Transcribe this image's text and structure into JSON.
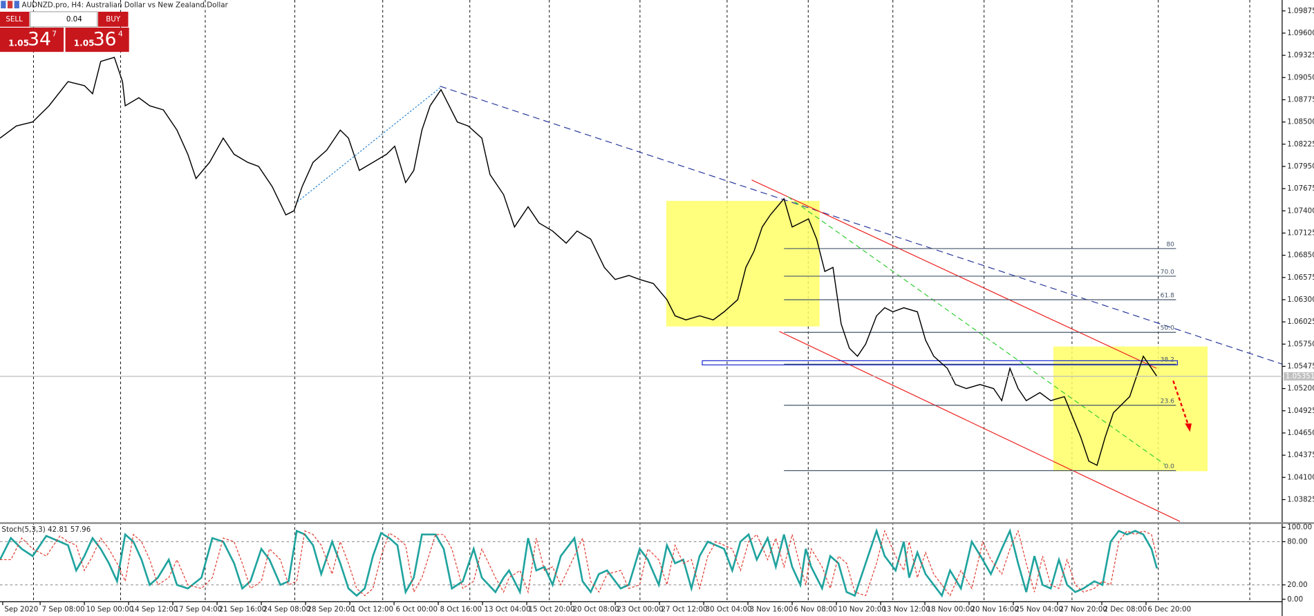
{
  "header": {
    "title": "AUDNZD.pro, H4:  Australian Dollar vs New Zealand Dollar"
  },
  "trade_panel": {
    "sell": "SELL",
    "buy": "BUY",
    "volume": "0.04",
    "sell_price": {
      "big": "1.05",
      "main": "34",
      "small": "7"
    },
    "buy_price": {
      "big": "1.05",
      "main": "36",
      "small": "4"
    }
  },
  "chart_data": [
    {
      "type": "line",
      "name": "AUDNZD.pro",
      "color": "#000000",
      "xlim": [
        0,
        471
      ],
      "xticks": [
        {
          "value": 1,
          "label": "Sep 2020"
        },
        {
          "value": 14.75,
          "label": "7 Sep 08:00"
        },
        {
          "value": 31,
          "label": "10 Sep 00:00"
        },
        {
          "value": 47.25,
          "label": "14 Sep 12:00"
        },
        {
          "value": 63.5,
          "label": "17 Sep 04:00"
        },
        {
          "value": 79.75,
          "label": "21 Sep 16:00"
        },
        {
          "value": 96,
          "label": "24 Sep 08:00"
        },
        {
          "value": 112.25,
          "label": "28 Sep 20:00"
        },
        {
          "value": 128.5,
          "label": "1 Oct 12:00"
        },
        {
          "value": 144.75,
          "label": "6 Oct 00:00"
        },
        {
          "value": 161,
          "label": "8 Oct 16:00"
        },
        {
          "value": 177.25,
          "label": "13 Oct 04:00"
        },
        {
          "value": 193.5,
          "label": "15 Oct 20:00"
        },
        {
          "value": 209.75,
          "label": "20 Oct 08:00"
        },
        {
          "value": 226,
          "label": "23 Oct 00:00"
        },
        {
          "value": 242.25,
          "label": "27 Oct 12:00"
        },
        {
          "value": 258.5,
          "label": "30 Oct 04:00"
        },
        {
          "value": 274.75,
          "label": "3 Nov 16:00"
        },
        {
          "value": 291,
          "label": "6 Nov 08:00"
        },
        {
          "value": 307.25,
          "label": "10 Nov 20:00"
        },
        {
          "value": 323.5,
          "label": "13 Nov 12:00"
        },
        {
          "value": 339.75,
          "label": "18 Nov 00:00"
        },
        {
          "value": 356,
          "label": "20 Nov 16:00"
        },
        {
          "value": 372.25,
          "label": "25 Nov 04:00"
        },
        {
          "value": 388.5,
          "label": "27 Nov 20:00"
        },
        {
          "value": 404.75,
          "label": "2 Dec 08:00"
        },
        {
          "value": 421,
          "label": "6 Dec 20:00"
        }
      ],
      "xgrid": [
        12.3,
        44.3,
        75.4,
        108.3,
        140.6,
        172.6,
        201.8,
        235.1,
        267.1,
        296.9,
        328,
        361.5,
        393.8,
        425.5,
        459.1
      ],
      "ylim": [
        1.03555,
        1.1001
      ],
      "yticks": [
        {
          "value": 1.09875,
          "label": "1.09875"
        },
        {
          "value": 1.096,
          "label": "1.09600"
        },
        {
          "value": 1.09325,
          "label": "1.09325"
        },
        {
          "value": 1.0905,
          "label": "1.09050"
        },
        {
          "value": 1.08775,
          "label": "1.08775"
        },
        {
          "value": 1.085,
          "label": "1.08500"
        },
        {
          "value": 1.08225,
          "label": "1.08225"
        },
        {
          "value": 1.0795,
          "label": "1.07950"
        },
        {
          "value": 1.07675,
          "label": "1.07675"
        },
        {
          "value": 1.074,
          "label": "1.07400"
        },
        {
          "value": 1.07125,
          "label": "1.07125"
        },
        {
          "value": 1.0685,
          "label": "1.06850"
        },
        {
          "value": 1.06575,
          "label": "1.06575"
        },
        {
          "value": 1.063,
          "label": "1.06300"
        },
        {
          "value": 1.06025,
          "label": "1.06025"
        },
        {
          "value": 1.0575,
          "label": "1.05750"
        },
        {
          "value": 1.05475,
          "label": "1.05475"
        },
        {
          "value": 1.052,
          "label": "1.05200"
        },
        {
          "value": 1.04925,
          "label": "1.04925"
        },
        {
          "value": 1.0465,
          "label": "1.04650"
        },
        {
          "value": 1.04375,
          "label": "1.04375"
        },
        {
          "value": 1.041,
          "label": "1.04100"
        },
        {
          "value": 1.03825,
          "label": "1.03825"
        }
      ],
      "last_price": {
        "value": 1.05351,
        "label": "1.05351"
      },
      "x": [
        0,
        6,
        12,
        18,
        25,
        31,
        34,
        37,
        42,
        45,
        46,
        51,
        55,
        60,
        65,
        69,
        72,
        77,
        82,
        86,
        91,
        95,
        100,
        105,
        108,
        111,
        115,
        120,
        125,
        128,
        132,
        137,
        142,
        145,
        149,
        152,
        155,
        158,
        162,
        165,
        168,
        172,
        177,
        180,
        185,
        189,
        194,
        198,
        203,
        208,
        212,
        217,
        222,
        226,
        231,
        235,
        240,
        245,
        248,
        252,
        257,
        262,
        266,
        271,
        274,
        277,
        280,
        283,
        288,
        291,
        294,
        297,
        300,
        303,
        306,
        309,
        312,
        315,
        318,
        322,
        325,
        328,
        332,
        337,
        340,
        343,
        348,
        351,
        355,
        360,
        365,
        368,
        371,
        374,
        377,
        382,
        386,
        391,
        394,
        397,
        400,
        403,
        406,
        409,
        412,
        415,
        418,
        420,
        422,
        425
      ],
      "values": [
        1.083,
        1.0845,
        1.085,
        1.087,
        1.09,
        1.0895,
        1.0885,
        1.0925,
        1.093,
        1.09,
        1.087,
        1.088,
        1.087,
        1.0865,
        1.084,
        1.081,
        1.078,
        1.08,
        1.083,
        1.081,
        1.08,
        1.0795,
        1.077,
        1.0735,
        1.074,
        1.077,
        1.08,
        1.0815,
        1.084,
        1.083,
        1.079,
        1.08,
        1.081,
        1.082,
        1.0775,
        1.079,
        1.084,
        1.087,
        1.089,
        1.087,
        1.085,
        1.0845,
        1.083,
        1.0785,
        1.076,
        1.072,
        1.0745,
        1.0725,
        1.0715,
        1.07,
        1.0715,
        1.0705,
        1.067,
        1.0655,
        1.066,
        1.0655,
        1.065,
        1.063,
        1.061,
        1.0605,
        1.061,
        1.0605,
        1.0615,
        1.063,
        1.067,
        1.069,
        1.072,
        1.0735,
        1.0755,
        1.072,
        1.0725,
        1.073,
        1.0705,
        1.0665,
        1.067,
        1.06,
        1.057,
        1.056,
        1.0575,
        1.061,
        1.062,
        1.0615,
        1.062,
        1.0615,
        1.058,
        1.056,
        1.0545,
        1.0525,
        1.052,
        1.0525,
        1.052,
        1.0505,
        1.0545,
        1.052,
        1.0505,
        1.0515,
        1.0505,
        1.051,
        1.0485,
        1.046,
        1.043,
        1.0425,
        1.046,
        1.049,
        1.05,
        1.051,
        1.054,
        1.056,
        1.055,
        1.0535
      ],
      "fibonacci": {
        "levels": [
          80,
          {
            "value": 70,
            "label": "70.0"
          },
          {
            "value": 61.8,
            "label": "61.8"
          },
          {
            "value": 50,
            "label": "50.0"
          },
          {
            "value": 38.2,
            "label": "38.2"
          },
          {
            "value": 23.6,
            "label": "23.6"
          },
          {
            "value": 0,
            "label": "0.0"
          }
        ],
        "prices": [
          1.06933,
          1.06591,
          1.063,
          1.05896,
          1.05502,
          1.04993,
          1.04184
        ],
        "color": "#44546a"
      }
    },
    {
      "type": "line",
      "title": "Stoch(5,3,3) 42.81 57.96",
      "ylim": [
        0,
        100
      ],
      "yticks": [
        {
          "value": 100,
          "label": "100.00"
        },
        {
          "value": 80,
          "label": "80.00"
        },
        {
          "value": 20,
          "label": "20.00"
        },
        {
          "value": 0,
          "label": "0.00"
        }
      ],
      "levels": [
        80,
        20
      ],
      "x": [
        0,
        4,
        8,
        12,
        17,
        22,
        25,
        28,
        31,
        34,
        37,
        40,
        43,
        46,
        49,
        52,
        55,
        58,
        62,
        65,
        69,
        74,
        78,
        82,
        86,
        89,
        92,
        96,
        99,
        103,
        106,
        109,
        112,
        115,
        118,
        122,
        125,
        128,
        131,
        134,
        137,
        140,
        143,
        146,
        149,
        152,
        155,
        160,
        163,
        166,
        170,
        174,
        177,
        182,
        185,
        187,
        191,
        194,
        197,
        200,
        203,
        206,
        211,
        214,
        217,
        220,
        223,
        228,
        231,
        235,
        238,
        242,
        245,
        248,
        251,
        254,
        257,
        260,
        263,
        266,
        269,
        272,
        275,
        278,
        282,
        285,
        288,
        291,
        294,
        296,
        298,
        302,
        305,
        308,
        311,
        314,
        318,
        322,
        325,
        329,
        332,
        334,
        337,
        340,
        343,
        346,
        349,
        353,
        357,
        361,
        364,
        368,
        371,
        374,
        377,
        380,
        383,
        386,
        389,
        392,
        395,
        398,
        402,
        405,
        408,
        411,
        414,
        417,
        420,
        423,
        425
      ],
      "series": [
        {
          "name": "Main",
          "color": "#20a39e",
          "values": [
            55,
            85,
            70,
            60,
            88,
            80,
            75,
            40,
            60,
            85,
            70,
            50,
            25,
            90,
            80,
            55,
            20,
            30,
            55,
            20,
            15,
            30,
            85,
            80,
            50,
            15,
            25,
            70,
            55,
            20,
            25,
            95,
            90,
            75,
            35,
            80,
            50,
            15,
            5,
            15,
            60,
            92,
            85,
            75,
            10,
            30,
            90,
            90,
            70,
            15,
            25,
            70,
            30,
            10,
            30,
            40,
            10,
            85,
            40,
            45,
            20,
            60,
            85,
            25,
            10,
            35,
            40,
            15,
            20,
            70,
            55,
            20,
            75,
            50,
            55,
            15,
            60,
            80,
            75,
            70,
            40,
            80,
            90,
            55,
            85,
            45,
            90,
            45,
            20,
            70,
            45,
            15,
            60,
            50,
            10,
            5,
            50,
            95,
            60,
            40,
            80,
            30,
            65,
            35,
            20,
            5,
            40,
            15,
            80,
            55,
            35,
            70,
            95,
            50,
            10,
            60,
            20,
            15,
            55,
            20,
            10,
            15,
            25,
            20,
            80,
            95,
            90,
            95,
            90,
            70,
            42.81
          ]
        },
        {
          "name": "Signal",
          "color": "#e03c31",
          "values": [
            55,
            55,
            85,
            70,
            60,
            88,
            80,
            75,
            40,
            60,
            85,
            70,
            50,
            25,
            90,
            80,
            55,
            20,
            30,
            55,
            20,
            15,
            30,
            85,
            80,
            50,
            15,
            25,
            70,
            55,
            20,
            25,
            95,
            90,
            75,
            35,
            80,
            50,
            15,
            5,
            15,
            60,
            92,
            85,
            75,
            10,
            30,
            90,
            90,
            70,
            15,
            25,
            70,
            30,
            10,
            30,
            40,
            10,
            85,
            40,
            45,
            20,
            60,
            85,
            25,
            10,
            35,
            40,
            15,
            20,
            70,
            55,
            20,
            75,
            50,
            55,
            15,
            60,
            80,
            75,
            70,
            40,
            80,
            90,
            55,
            85,
            45,
            90,
            45,
            20,
            70,
            45,
            15,
            60,
            50,
            10,
            5,
            50,
            95,
            60,
            40,
            80,
            30,
            65,
            35,
            20,
            5,
            40,
            15,
            80,
            55,
            35,
            70,
            95,
            50,
            10,
            60,
            20,
            15,
            55,
            20,
            10,
            15,
            25,
            20,
            80,
            95,
            90,
            95,
            90,
            57.96
          ]
        }
      ]
    }
  ]
}
